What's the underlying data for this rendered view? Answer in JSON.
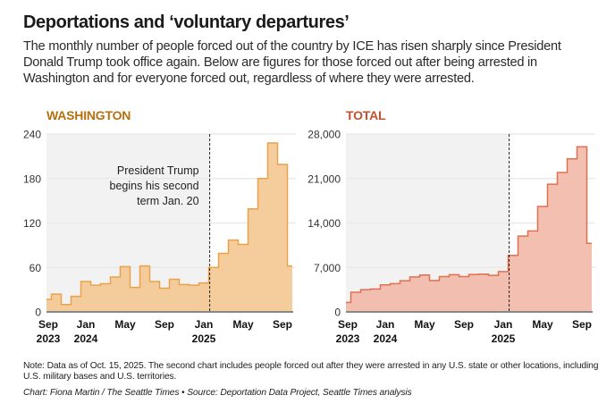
{
  "header": {
    "title": "Deportations and ‘voluntary departures’",
    "subtitle": "The monthly number of people forced out of the country by ICE has risen sharply since President Donald Trump took office again. Below are figures for those forced out after being arrested in Washington and for everyone forced out, regardless of where they were arrested."
  },
  "footer": {
    "note": "Note: Data as of Oct. 15, 2025. The second chart includes people forced out after they were arrested in any U.S. state or other locations, including U.S. military bases and U.S. territories.",
    "credit": "Chart: Fiona Martin / The Seattle Times • Source: Deportation Data Project, Seattle Times analysis"
  },
  "chart_data": [
    {
      "type": "area",
      "title": "WASHINGTON",
      "title_color": "#B5700F",
      "fill_color": "#F4C995",
      "line_color": "#E9A24C",
      "xlabel": "",
      "ylabel": "",
      "ylim": [
        0,
        240
      ],
      "yticks": [
        0,
        60,
        120,
        180,
        240
      ],
      "ytick_labels": [
        "0",
        "60",
        "120",
        "180",
        "240"
      ],
      "grid": true,
      "x": [
        "2023-09",
        "2023-10",
        "2023-11",
        "2023-12",
        "2024-01",
        "2024-02",
        "2024-03",
        "2024-04",
        "2024-05",
        "2024-06",
        "2024-07",
        "2024-08",
        "2024-09",
        "2024-10",
        "2024-11",
        "2024-12",
        "2025-01",
        "2025-02",
        "2025-03",
        "2025-04",
        "2025-05",
        "2025-06",
        "2025-07",
        "2025-08",
        "2025-09",
        "2025-10"
      ],
      "values": [
        17,
        24,
        10,
        21,
        41,
        36,
        38,
        47,
        61,
        33,
        62,
        41,
        32,
        44,
        37,
        36,
        39,
        60,
        79,
        97,
        91,
        139,
        180,
        228,
        199,
        62
      ],
      "xticks": [
        {
          "month_index": 0,
          "line1": "Sep",
          "line2": "2023"
        },
        {
          "month_index": 4,
          "line1": "Jan",
          "line2": "2024"
        },
        {
          "month_index": 8,
          "line1": "May",
          "line2": ""
        },
        {
          "month_index": 12,
          "line1": "Sep",
          "line2": ""
        },
        {
          "month_index": 16,
          "line1": "Jan",
          "line2": "2025"
        },
        {
          "month_index": 20,
          "line1": "May",
          "line2": ""
        },
        {
          "month_index": 24,
          "line1": "Sep",
          "line2": ""
        }
      ],
      "annotation": {
        "event_month_index": 16.6,
        "lines": [
          "President Trump",
          "begins his second",
          "term Jan. 20"
        ],
        "shade_before_event": true
      }
    },
    {
      "type": "area",
      "title": "TOTAL",
      "title_color": "#C4502E",
      "fill_color": "#F1BAAA",
      "line_color": "#E0714F",
      "xlabel": "",
      "ylabel": "",
      "ylim": [
        0,
        28000
      ],
      "yticks": [
        0,
        7000,
        14000,
        21000,
        28000
      ],
      "ytick_labels": [
        "0",
        "7,000",
        "14,000",
        "21,000",
        "28,000"
      ],
      "grid": true,
      "x": [
        "2023-09",
        "2023-10",
        "2023-11",
        "2023-12",
        "2024-01",
        "2024-02",
        "2024-03",
        "2024-04",
        "2024-05",
        "2024-06",
        "2024-07",
        "2024-08",
        "2024-09",
        "2024-10",
        "2024-11",
        "2024-12",
        "2025-01",
        "2025-02",
        "2025-03",
        "2025-04",
        "2025-05",
        "2025-06",
        "2025-07",
        "2025-08",
        "2025-09",
        "2025-10"
      ],
      "values": [
        1500,
        3100,
        3500,
        3600,
        4250,
        4450,
        4900,
        5500,
        5800,
        4950,
        5550,
        5850,
        5550,
        5900,
        5950,
        5750,
        6350,
        8900,
        11950,
        12750,
        16600,
        20100,
        21950,
        24100,
        26000,
        10800
      ],
      "xticks": [
        {
          "month_index": 0,
          "line1": "Sep",
          "line2": "2023"
        },
        {
          "month_index": 4,
          "line1": "Jan",
          "line2": "2024"
        },
        {
          "month_index": 8,
          "line1": "May",
          "line2": ""
        },
        {
          "month_index": 12,
          "line1": "Sep",
          "line2": ""
        },
        {
          "month_index": 16,
          "line1": "Jan",
          "line2": "2025"
        },
        {
          "month_index": 20,
          "line1": "May",
          "line2": ""
        },
        {
          "month_index": 24,
          "line1": "Sep",
          "line2": ""
        }
      ],
      "annotation": {
        "event_month_index": 16.6,
        "lines": [],
        "shade_before_event": true
      }
    }
  ]
}
